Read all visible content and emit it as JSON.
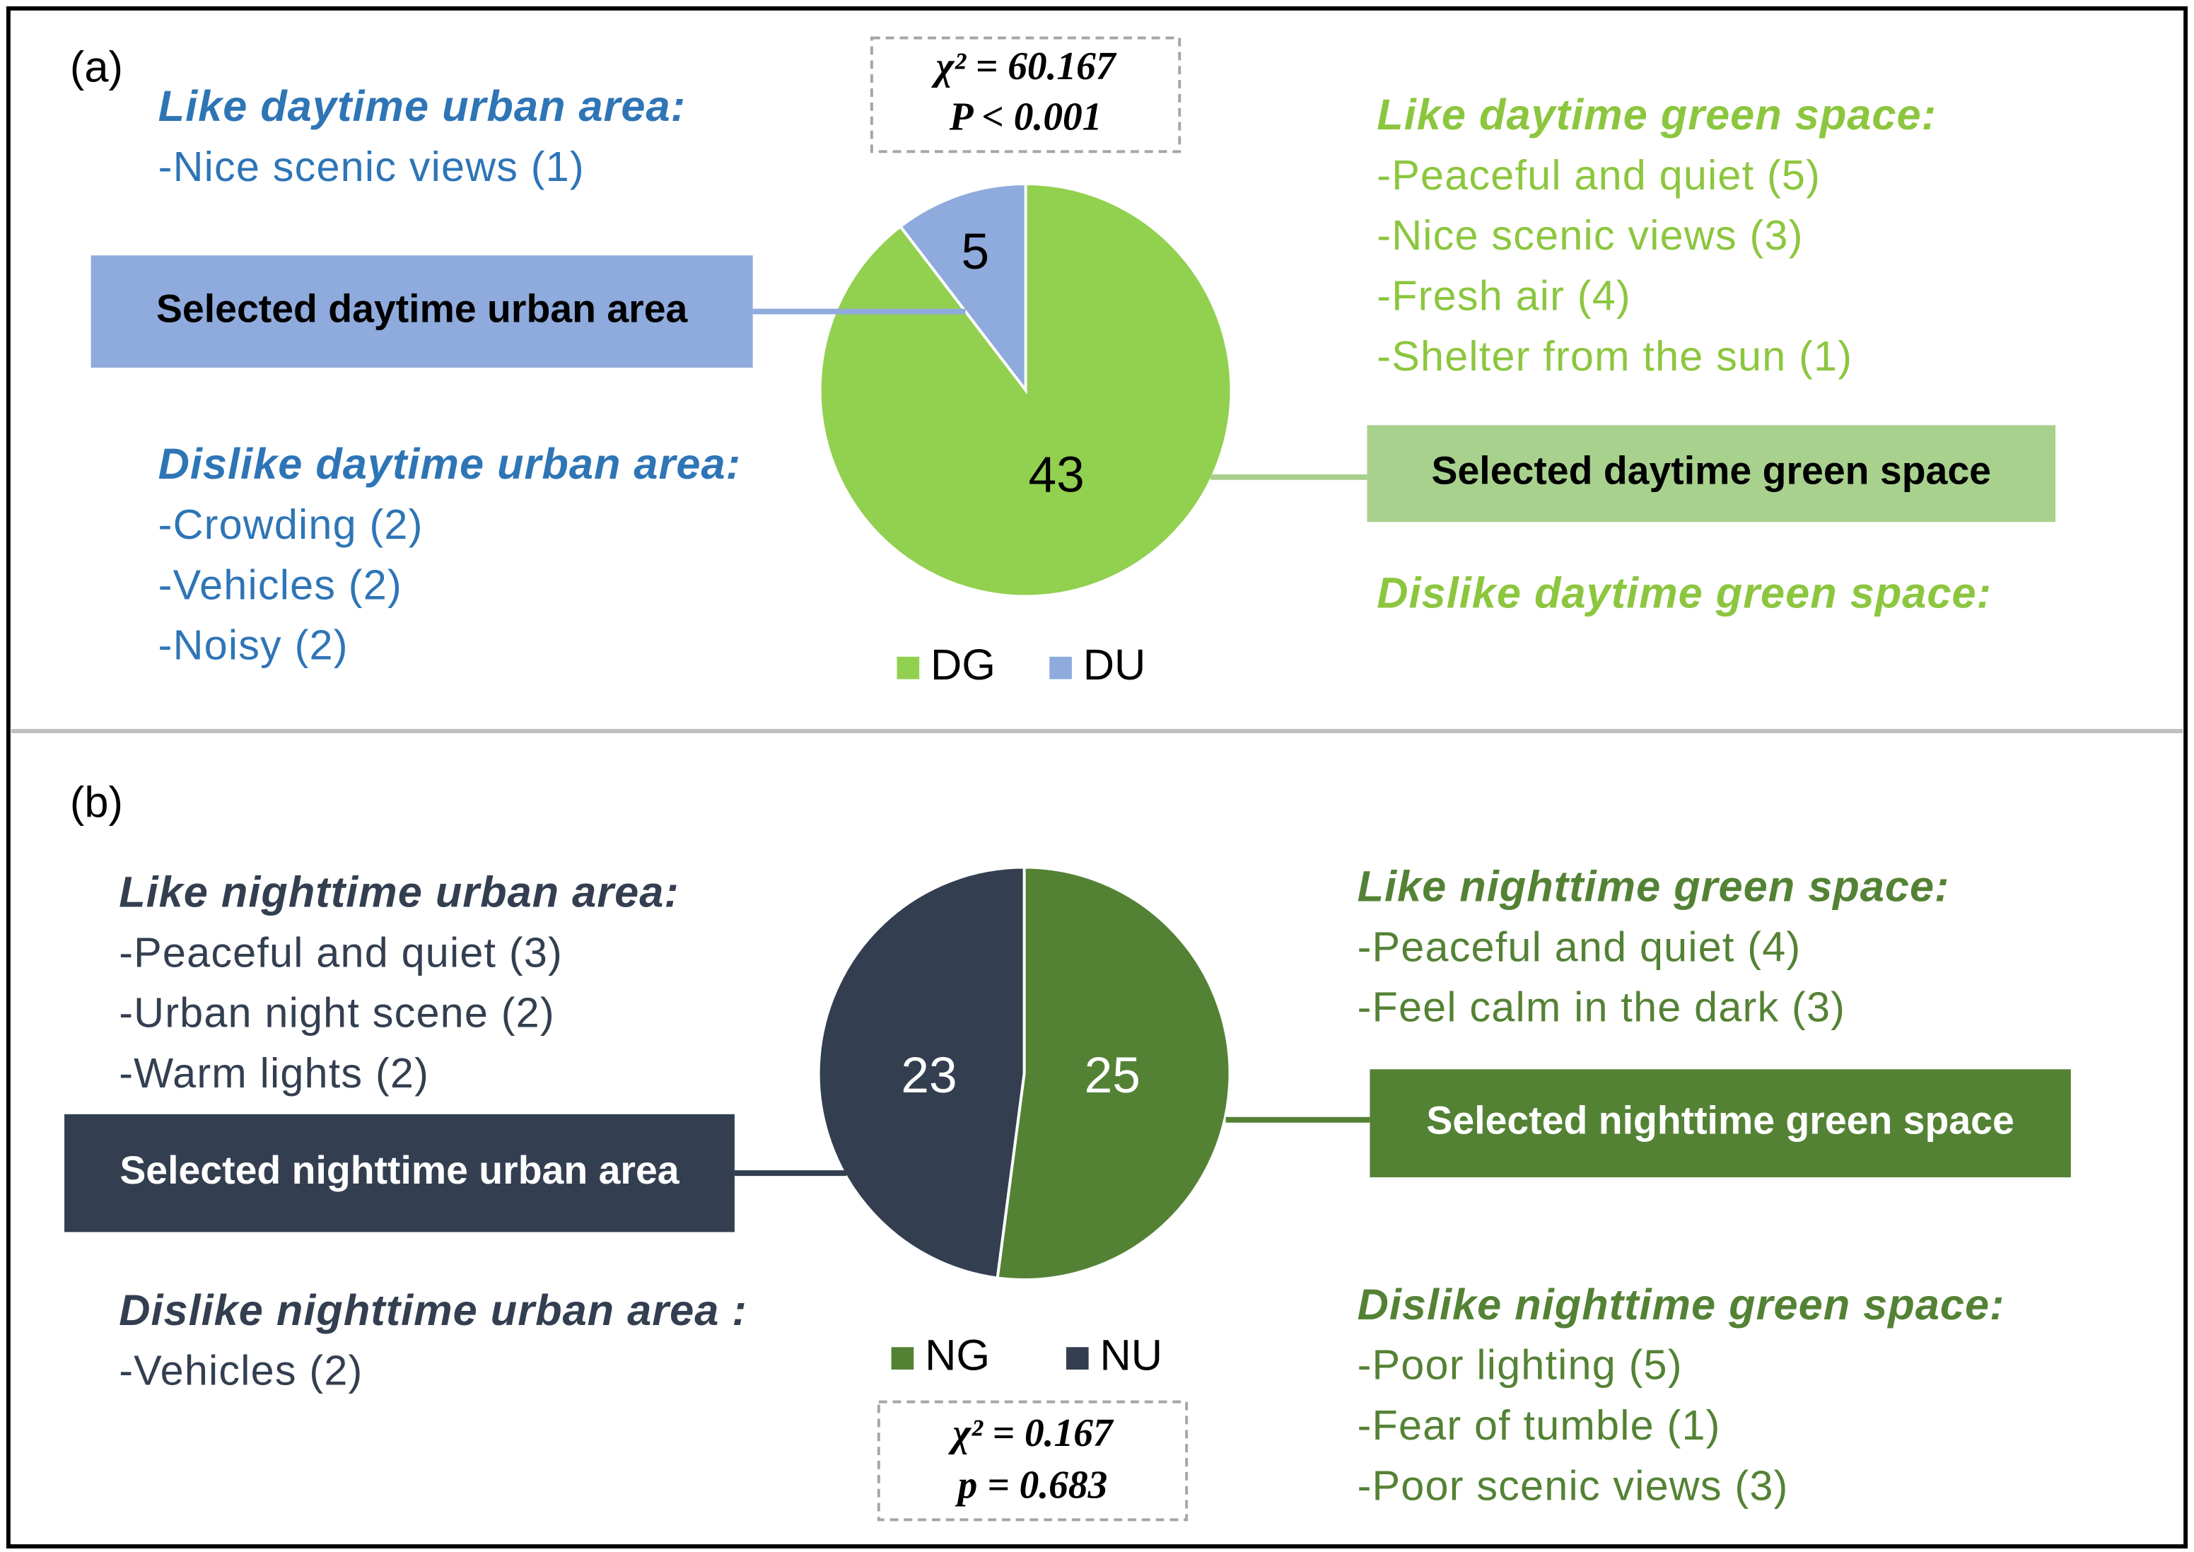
{
  "chart_data": [
    {
      "type": "pie",
      "panel_label": "(a)",
      "categories": [
        "DG",
        "DU"
      ],
      "values": [
        43,
        5
      ],
      "colors": [
        "#92d050",
        "#8faadc"
      ],
      "statistic": [
        "χ² = 60.167",
        "P < 0.001"
      ],
      "urban": {
        "selected": "Selected daytime urban area",
        "color": "#2e75b6",
        "box_color": "#8faadc",
        "box_text_color": "#000000",
        "like": {
          "heading": "Like daytime urban area:",
          "items": [
            "-Nice scenic views (1)"
          ]
        },
        "dislike": {
          "heading": "Dislike daytime urban area:",
          "items": [
            "-Crowding (2)",
            "-Vehicles (2)",
            "-Noisy (2)"
          ]
        }
      },
      "green": {
        "selected": "Selected daytime green space",
        "color": "#8cc63f",
        "box_color": "#a9d18e",
        "box_text_color": "#000000",
        "like": {
          "heading": "Like daytime green space:",
          "items": [
            "-Peaceful and quiet (5)",
            "-Nice scenic views (3)",
            "-Fresh air (4)",
            "-Shelter from the sun (1)"
          ]
        },
        "dislike": {
          "heading": "Dislike daytime green space:",
          "items": []
        }
      }
    },
    {
      "type": "pie",
      "panel_label": "(b)",
      "categories": [
        "NG",
        "NU"
      ],
      "values": [
        25,
        23
      ],
      "colors": [
        "#548235",
        "#333f50"
      ],
      "statistic": [
        "χ² = 0.167",
        "p = 0.683"
      ],
      "urban": {
        "selected": "Selected nighttime urban area",
        "color": "#333f50",
        "box_color": "#333f50",
        "box_text_color": "#ffffff",
        "like": {
          "heading": "Like nighttime urban area:",
          "items": [
            "-Peaceful and quiet (3)",
            "-Urban night scene (2)",
            "-Warm lights (2)"
          ]
        },
        "dislike": {
          "heading": "Dislike nighttime urban area :",
          "items": [
            "-Vehicles (2)"
          ]
        }
      },
      "green": {
        "selected": "Selected nighttime green space",
        "color": "#548235",
        "box_color": "#548235",
        "box_text_color": "#ffffff",
        "like": {
          "heading": "Like nighttime green space:",
          "items": [
            "-Peaceful and quiet (4)",
            "-Feel calm in the dark (3)"
          ]
        },
        "dislike": {
          "heading": "Dislike nighttime green space:",
          "items": [
            "-Poor lighting (5)",
            "-Fear of tumble (1)",
            "-Poor scenic views (3)"
          ]
        }
      }
    }
  ]
}
